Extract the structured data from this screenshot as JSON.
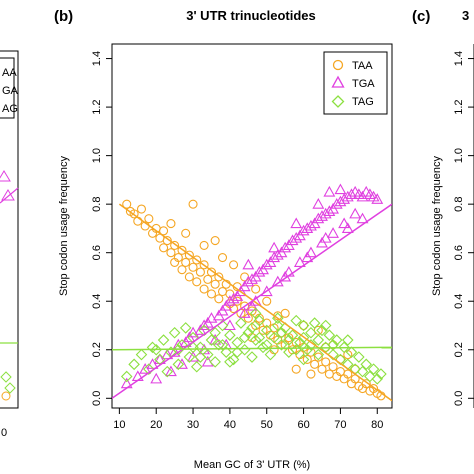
{
  "figure": {
    "panel_b_letter": "(b)",
    "panel_c_letter": "(c)",
    "left_panel_legend_fragments": [
      "AA",
      "GA",
      "AG"
    ],
    "left_panel_tick_fragment": "0",
    "right_panel_title_fragment": "3",
    "right_panel_ylabel": "Stop codon usage frequency",
    "right_panel_yticks": [
      "1.4",
      "1.2",
      "1.0",
      "0.8",
      "0.6",
      "0.4",
      "0.2",
      "0.0"
    ]
  },
  "chart_data": {
    "type": "scatter",
    "title": "3' UTR trinucleotides",
    "xlabel": "Mean GC of 3' UTR (%)",
    "ylabel": "Stop codon usage frequency",
    "xlim": [
      8,
      84
    ],
    "ylim": [
      -0.04,
      1.46
    ],
    "xticks": [
      10,
      20,
      30,
      40,
      50,
      60,
      70,
      80
    ],
    "yticks": [
      0.0,
      0.2,
      0.4,
      0.6,
      0.8,
      1.0,
      1.2,
      1.4
    ],
    "legend_position": "top-right",
    "grid": false,
    "series": [
      {
        "name": "TAA",
        "marker": "circle",
        "color": "#F5A623",
        "trend": {
          "x": [
            10,
            84
          ],
          "y": [
            0.8,
            -0.01
          ]
        },
        "points": [
          [
            12,
            0.8
          ],
          [
            13,
            0.77
          ],
          [
            14,
            0.76
          ],
          [
            15,
            0.73
          ],
          [
            16,
            0.78
          ],
          [
            17,
            0.71
          ],
          [
            18,
            0.74
          ],
          [
            19,
            0.68
          ],
          [
            20,
            0.7
          ],
          [
            21,
            0.66
          ],
          [
            22,
            0.69
          ],
          [
            22,
            0.62
          ],
          [
            23,
            0.65
          ],
          [
            24,
            0.6
          ],
          [
            25,
            0.63
          ],
          [
            25,
            0.56
          ],
          [
            26,
            0.58
          ],
          [
            27,
            0.61
          ],
          [
            27,
            0.53
          ],
          [
            28,
            0.56
          ],
          [
            29,
            0.59
          ],
          [
            29,
            0.5
          ],
          [
            30,
            0.54
          ],
          [
            31,
            0.57
          ],
          [
            31,
            0.48
          ],
          [
            32,
            0.52
          ],
          [
            33,
            0.55
          ],
          [
            33,
            0.45
          ],
          [
            34,
            0.49
          ],
          [
            35,
            0.52
          ],
          [
            35,
            0.43
          ],
          [
            36,
            0.47
          ],
          [
            37,
            0.5
          ],
          [
            37,
            0.41
          ],
          [
            38,
            0.44
          ],
          [
            39,
            0.47
          ],
          [
            40,
            0.39
          ],
          [
            40,
            0.43
          ],
          [
            41,
            0.37
          ],
          [
            42,
            0.4
          ],
          [
            43,
            0.35
          ],
          [
            44,
            0.38
          ],
          [
            45,
            0.33
          ],
          [
            46,
            0.36
          ],
          [
            47,
            0.3
          ],
          [
            48,
            0.33
          ],
          [
            49,
            0.28
          ],
          [
            50,
            0.31
          ],
          [
            51,
            0.26
          ],
          [
            52,
            0.29
          ],
          [
            53,
            0.24
          ],
          [
            54,
            0.27
          ],
          [
            55,
            0.22
          ],
          [
            56,
            0.25
          ],
          [
            57,
            0.2
          ],
          [
            58,
            0.23
          ],
          [
            59,
            0.18
          ],
          [
            60,
            0.21
          ],
          [
            61,
            0.16
          ],
          [
            62,
            0.19
          ],
          [
            63,
            0.14
          ],
          [
            64,
            0.17
          ],
          [
            65,
            0.12
          ],
          [
            66,
            0.15
          ],
          [
            67,
            0.1
          ],
          [
            68,
            0.13
          ],
          [
            69,
            0.09
          ],
          [
            70,
            0.11
          ],
          [
            71,
            0.08
          ],
          [
            72,
            0.1
          ],
          [
            73,
            0.06
          ],
          [
            74,
            0.08
          ],
          [
            75,
            0.05
          ],
          [
            76,
            0.04
          ],
          [
            77,
            0.06
          ],
          [
            78,
            0.03
          ],
          [
            79,
            0.04
          ],
          [
            80,
            0.02
          ],
          [
            81,
            0.01
          ],
          [
            30,
            0.8
          ],
          [
            36,
            0.65
          ],
          [
            41,
            0.55
          ],
          [
            44,
            0.5
          ],
          [
            47,
            0.45
          ],
          [
            55,
            0.35
          ],
          [
            60,
            0.3
          ],
          [
            64,
            0.28
          ],
          [
            68,
            0.22
          ],
          [
            72,
            0.18
          ],
          [
            58,
            0.12
          ],
          [
            62,
            0.1
          ],
          [
            46,
            0.25
          ],
          [
            52,
            0.2
          ],
          [
            24,
            0.72
          ],
          [
            28,
            0.68
          ],
          [
            33,
            0.63
          ],
          [
            38,
            0.58
          ],
          [
            42,
            0.46
          ],
          [
            50,
            0.4
          ],
          [
            53,
            0.34
          ],
          [
            66,
            0.21
          ],
          [
            70,
            0.16
          ],
          [
            74,
            0.12
          ]
        ]
      },
      {
        "name": "TGA",
        "marker": "triangle",
        "color": "#E040E0",
        "trend": {
          "x": [
            8,
            84
          ],
          "y": [
            0.0,
            0.8
          ]
        },
        "points": [
          [
            12,
            0.06
          ],
          [
            15,
            0.09
          ],
          [
            17,
            0.12
          ],
          [
            19,
            0.14
          ],
          [
            21,
            0.16
          ],
          [
            23,
            0.18
          ],
          [
            25,
            0.19
          ],
          [
            26,
            0.22
          ],
          [
            28,
            0.23
          ],
          [
            29,
            0.25
          ],
          [
            30,
            0.27
          ],
          [
            32,
            0.28
          ],
          [
            33,
            0.3
          ],
          [
            34,
            0.31
          ],
          [
            35,
            0.33
          ],
          [
            37,
            0.34
          ],
          [
            38,
            0.36
          ],
          [
            39,
            0.38
          ],
          [
            40,
            0.4
          ],
          [
            41,
            0.41
          ],
          [
            42,
            0.42
          ],
          [
            43,
            0.44
          ],
          [
            44,
            0.46
          ],
          [
            45,
            0.48
          ],
          [
            46,
            0.49
          ],
          [
            47,
            0.5
          ],
          [
            48,
            0.52
          ],
          [
            49,
            0.53
          ],
          [
            50,
            0.55
          ],
          [
            51,
            0.56
          ],
          [
            52,
            0.58
          ],
          [
            53,
            0.59
          ],
          [
            54,
            0.6
          ],
          [
            55,
            0.62
          ],
          [
            56,
            0.63
          ],
          [
            57,
            0.65
          ],
          [
            58,
            0.66
          ],
          [
            59,
            0.67
          ],
          [
            60,
            0.69
          ],
          [
            61,
            0.7
          ],
          [
            62,
            0.71
          ],
          [
            63,
            0.72
          ],
          [
            64,
            0.74
          ],
          [
            65,
            0.75
          ],
          [
            66,
            0.76
          ],
          [
            67,
            0.77
          ],
          [
            68,
            0.78
          ],
          [
            69,
            0.8
          ],
          [
            70,
            0.81
          ],
          [
            71,
            0.82
          ],
          [
            72,
            0.83
          ],
          [
            73,
            0.84
          ],
          [
            74,
            0.85
          ],
          [
            75,
            0.84
          ],
          [
            76,
            0.83
          ],
          [
            77,
            0.85
          ],
          [
            78,
            0.84
          ],
          [
            79,
            0.83
          ],
          [
            80,
            0.82
          ],
          [
            40,
            0.3
          ],
          [
            44,
            0.35
          ],
          [
            47,
            0.4
          ],
          [
            50,
            0.44
          ],
          [
            53,
            0.48
          ],
          [
            56,
            0.52
          ],
          [
            59,
            0.56
          ],
          [
            62,
            0.6
          ],
          [
            65,
            0.64
          ],
          [
            68,
            0.68
          ],
          [
            71,
            0.72
          ],
          [
            74,
            0.76
          ],
          [
            36,
            0.24
          ],
          [
            33,
            0.2
          ],
          [
            30,
            0.17
          ],
          [
            27,
            0.14
          ],
          [
            45,
            0.55
          ],
          [
            52,
            0.62
          ],
          [
            58,
            0.72
          ],
          [
            64,
            0.8
          ],
          [
            67,
            0.85
          ],
          [
            70,
            0.86
          ],
          [
            46,
            0.38
          ],
          [
            55,
            0.5
          ],
          [
            61,
            0.58
          ],
          [
            66,
            0.66
          ],
          [
            72,
            0.7
          ],
          [
            76,
            0.74
          ],
          [
            34,
            0.15
          ],
          [
            39,
            0.22
          ],
          [
            24,
            0.11
          ],
          [
            20,
            0.08
          ]
        ]
      },
      {
        "name": "TAG",
        "marker": "diamond",
        "color": "#8CE040",
        "trend": {
          "x": [
            8,
            84
          ],
          "y": [
            0.2,
            0.21
          ]
        },
        "points": [
          [
            12,
            0.09
          ],
          [
            14,
            0.14
          ],
          [
            16,
            0.18
          ],
          [
            18,
            0.12
          ],
          [
            19,
            0.21
          ],
          [
            21,
            0.16
          ],
          [
            22,
            0.24
          ],
          [
            23,
            0.11
          ],
          [
            24,
            0.19
          ],
          [
            25,
            0.27
          ],
          [
            26,
            0.14
          ],
          [
            27,
            0.22
          ],
          [
            28,
            0.29
          ],
          [
            29,
            0.17
          ],
          [
            30,
            0.25
          ],
          [
            31,
            0.13
          ],
          [
            32,
            0.21
          ],
          [
            33,
            0.28
          ],
          [
            34,
            0.18
          ],
          [
            35,
            0.24
          ],
          [
            36,
            0.15
          ],
          [
            37,
            0.22
          ],
          [
            38,
            0.3
          ],
          [
            39,
            0.19
          ],
          [
            40,
            0.26
          ],
          [
            41,
            0.16
          ],
          [
            42,
            0.23
          ],
          [
            43,
            0.31
          ],
          [
            44,
            0.2
          ],
          [
            45,
            0.27
          ],
          [
            46,
            0.17
          ],
          [
            47,
            0.24
          ],
          [
            48,
            0.32
          ],
          [
            49,
            0.21
          ],
          [
            50,
            0.28
          ],
          [
            51,
            0.18
          ],
          [
            52,
            0.25
          ],
          [
            53,
            0.33
          ],
          [
            54,
            0.22
          ],
          [
            55,
            0.29
          ],
          [
            56,
            0.19
          ],
          [
            57,
            0.26
          ],
          [
            58,
            0.32
          ],
          [
            59,
            0.23
          ],
          [
            60,
            0.3
          ],
          [
            61,
            0.2
          ],
          [
            62,
            0.27
          ],
          [
            63,
            0.31
          ],
          [
            64,
            0.24
          ],
          [
            65,
            0.28
          ],
          [
            66,
            0.21
          ],
          [
            67,
            0.26
          ],
          [
            68,
            0.18
          ],
          [
            69,
            0.24
          ],
          [
            70,
            0.16
          ],
          [
            71,
            0.21
          ],
          [
            72,
            0.14
          ],
          [
            73,
            0.19
          ],
          [
            74,
            0.12
          ],
          [
            75,
            0.17
          ],
          [
            76,
            0.11
          ],
          [
            77,
            0.14
          ],
          [
            78,
            0.09
          ],
          [
            79,
            0.12
          ],
          [
            80,
            0.08
          ],
          [
            81,
            0.1
          ],
          [
            20,
            0.2
          ],
          [
            26,
            0.2
          ],
          [
            32,
            0.17
          ],
          [
            38,
            0.22
          ],
          [
            44,
            0.25
          ],
          [
            50,
            0.22
          ],
          [
            56,
            0.24
          ],
          [
            62,
            0.22
          ],
          [
            68,
            0.22
          ],
          [
            36,
            0.27
          ],
          [
            42,
            0.19
          ],
          [
            48,
            0.25
          ],
          [
            54,
            0.27
          ],
          [
            60,
            0.25
          ],
          [
            66,
            0.3
          ],
          [
            72,
            0.24
          ],
          [
            30,
            0.21
          ],
          [
            46,
            0.29
          ],
          [
            58,
            0.2
          ],
          [
            64,
            0.18
          ],
          [
            53,
            0.3
          ],
          [
            40,
            0.15
          ],
          [
            47,
            0.35
          ],
          [
            60,
            0.16
          ]
        ]
      }
    ]
  }
}
